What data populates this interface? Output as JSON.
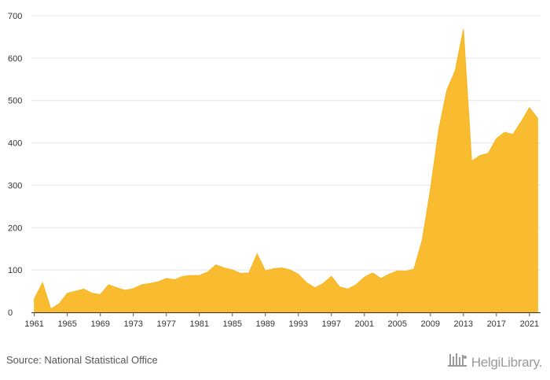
{
  "chart_data": {
    "type": "area",
    "title": "",
    "xlabel": "",
    "ylabel": "",
    "ylim": [
      0,
      700
    ],
    "y_ticks": [
      0,
      100,
      200,
      300,
      400,
      500,
      600,
      700
    ],
    "x_ticks": [
      1961,
      1965,
      1969,
      1973,
      1977,
      1981,
      1985,
      1989,
      1993,
      1997,
      2001,
      2005,
      2009,
      2013,
      2017,
      2021
    ],
    "grid": true,
    "color": "#f9bc31",
    "x": [
      1961,
      1962,
      1963,
      1964,
      1965,
      1966,
      1967,
      1968,
      1969,
      1970,
      1971,
      1972,
      1973,
      1974,
      1975,
      1976,
      1977,
      1978,
      1979,
      1980,
      1981,
      1982,
      1983,
      1984,
      1985,
      1986,
      1987,
      1988,
      1989,
      1990,
      1991,
      1992,
      1993,
      1994,
      1995,
      1996,
      1997,
      1998,
      1999,
      2000,
      2001,
      2002,
      2003,
      2004,
      2005,
      2006,
      2007,
      2008,
      2009,
      2010,
      2011,
      2012,
      2013,
      2014,
      2015,
      2016,
      2017,
      2018,
      2019,
      2020,
      2021,
      2022
    ],
    "values": [
      32,
      70,
      8,
      20,
      45,
      50,
      55,
      45,
      42,
      65,
      58,
      52,
      56,
      65,
      68,
      72,
      80,
      77,
      85,
      87,
      87,
      95,
      112,
      105,
      100,
      92,
      93,
      138,
      98,
      103,
      105,
      100,
      90,
      70,
      58,
      68,
      85,
      60,
      55,
      65,
      83,
      93,
      80,
      90,
      98,
      97,
      102,
      170,
      290,
      430,
      525,
      570,
      668,
      357,
      370,
      375,
      410,
      425,
      420,
      450,
      483,
      458
    ]
  },
  "footer": {
    "source": "Source: National Statistical Office",
    "logo_text": "HelgiLibrary."
  },
  "logo_icon": "helgi-library-building-icon"
}
